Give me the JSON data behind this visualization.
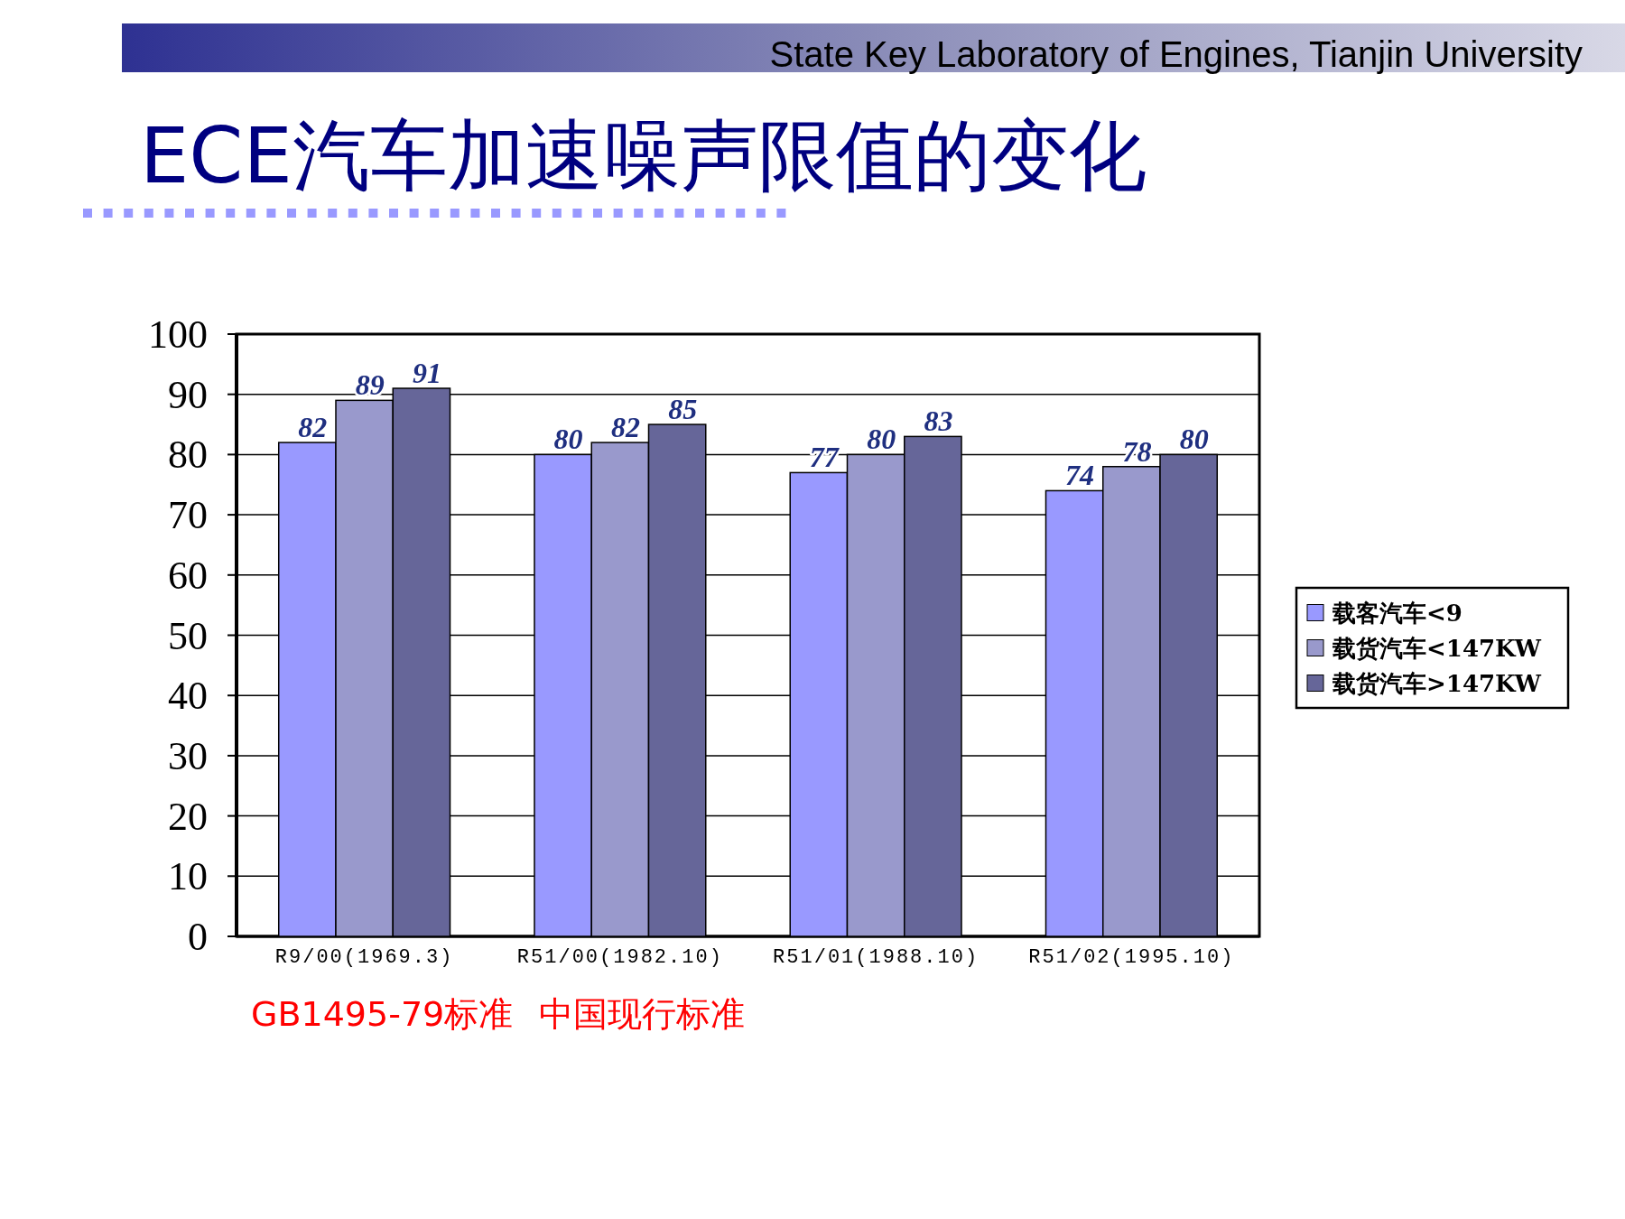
{
  "chart_data": {
    "type": "bar",
    "title": "ECE汽车加速噪声限值的变化",
    "categories": [
      "R9/00(1969.3)",
      "R51/00(1982.10)",
      "R51/01(1988.10)",
      "R51/02(1995.10)"
    ],
    "series": [
      {
        "name": "载客汽车<9",
        "color": "#9999ff",
        "values": [
          82,
          80,
          77,
          74
        ]
      },
      {
        "name": "载货汽车<147KW",
        "color": "#9999cc",
        "values": [
          89,
          82,
          80,
          78
        ]
      },
      {
        "name": "载货汽车>147KW",
        "color": "#666699",
        "values": [
          91,
          85,
          83,
          80
        ]
      }
    ],
    "ylim": [
      0,
      100
    ],
    "yticks": [
      0,
      10,
      20,
      30,
      40,
      50,
      60,
      70,
      80,
      90,
      100
    ],
    "grid": "y",
    "legend": "right",
    "data_labels": true,
    "annotations": [
      "State Key Laboratory of Engines, Tianjin University",
      "GB1495-79标准",
      "中国现行标准"
    ]
  }
}
